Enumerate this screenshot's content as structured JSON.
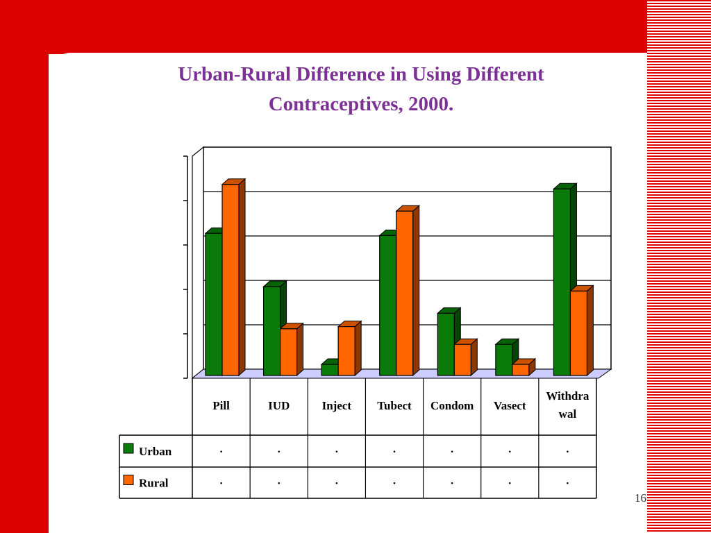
{
  "slide": {
    "title": "Urban-Rural Difference in Using Different\nContraceptives, 2000.",
    "page_number": "16"
  },
  "colors": {
    "background_red": "#dd0000",
    "title": "#7b3294",
    "urban": "#0a7a0a",
    "rural": "#ff6600",
    "floor": "#ccccff"
  },
  "chart_data": {
    "type": "bar",
    "title": "",
    "xlabel": "",
    "ylabel": "",
    "ylim": [
      0,
      5
    ],
    "grid": true,
    "legend": "data-table",
    "categories": [
      "Pill",
      "IUD",
      "Inject",
      "Tubect",
      "Condom",
      "Vasect",
      "Withdrawal"
    ],
    "category_labels": [
      [
        "Pill"
      ],
      [
        "IUD"
      ],
      [
        "Inject"
      ],
      [
        "Tubect"
      ],
      [
        "Condom"
      ],
      [
        "Vasect"
      ],
      [
        "Withdra",
        "wal"
      ]
    ],
    "series": [
      {
        "name": "Urban",
        "values": [
          3.2,
          2.0,
          0.25,
          3.15,
          1.4,
          0.7,
          4.2
        ],
        "table_values": [
          ".",
          ".",
          ".",
          ".",
          ".",
          ".",
          "."
        ]
      },
      {
        "name": "Rural",
        "values": [
          4.3,
          1.05,
          1.1,
          3.7,
          0.7,
          0.25,
          1.9
        ],
        "table_values": [
          ".",
          ".",
          ".",
          ".",
          ".",
          ".",
          "."
        ]
      }
    ]
  }
}
